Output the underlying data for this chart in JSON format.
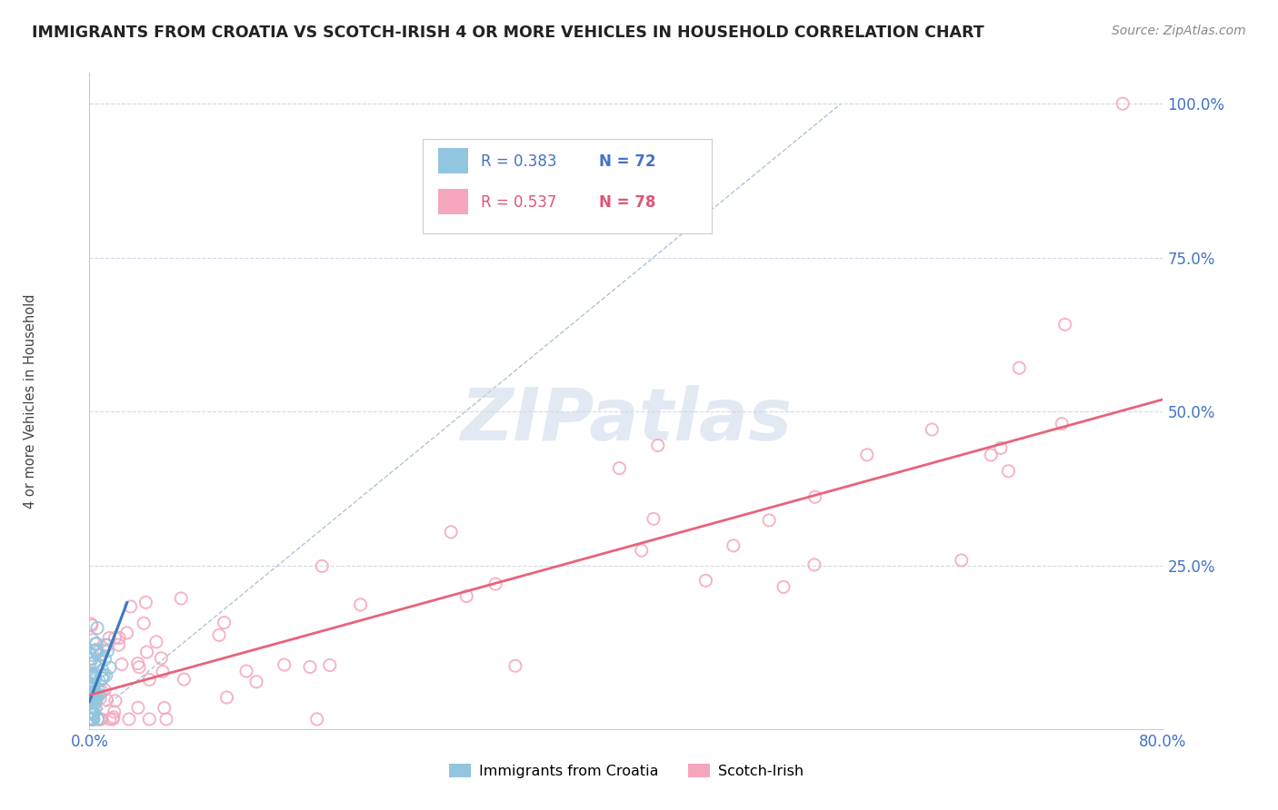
{
  "title": "IMMIGRANTS FROM CROATIA VS SCOTCH-IRISH 4 OR MORE VEHICLES IN HOUSEHOLD CORRELATION CHART",
  "source": "Source: ZipAtlas.com",
  "ylabel": "4 or more Vehicles in Household",
  "xmin": 0.0,
  "xmax": 0.8,
  "ymin": -0.015,
  "ymax": 1.05,
  "croatia_R": 0.383,
  "croatia_N": 72,
  "scotch_irish_R": 0.537,
  "scotch_irish_N": 78,
  "croatia_color": "#92c5de",
  "scotch_irish_color": "#f4a6bc",
  "croatia_line_color": "#3a7bbf",
  "scotch_irish_line_color": "#e8637a",
  "watermark_color": "#cdd8e8",
  "background_color": "#ffffff",
  "tick_color": "#4472c4",
  "title_color": "#222222",
  "ylabel_color": "#444444",
  "grid_color": "#d0d8e8",
  "diag_color": "#b0c4d8",
  "legend_border": "#cccccc",
  "scotch_trend_x0": 0.0,
  "scotch_trend_y0": 0.04,
  "scotch_trend_x1": 0.8,
  "scotch_trend_y1": 0.52,
  "croatia_trend_x0": 0.0,
  "croatia_trend_y0": 0.03,
  "croatia_trend_x1": 0.028,
  "croatia_trend_y1": 0.19
}
